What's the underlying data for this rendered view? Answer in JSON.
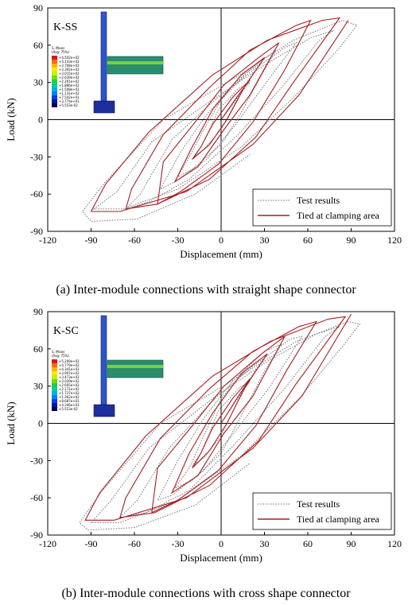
{
  "colors": {
    "test": "#7a7a7a",
    "fem": "#a81e22"
  },
  "panels": [
    {
      "caption": "(a) Inter-module connections with straight shape connector",
      "label": "K-SS",
      "colorbar_title": [
        "S, Mises",
        "(Avg: 75%)"
      ],
      "colorbar_values": [
        "+4.502e+02",
        "+4.143e+02",
        "+3.768e+02",
        "+3.392e+02",
        "+3.015e+02",
        "+2.639e+02",
        "+2.261e+02",
        "+1.886e+02",
        "+1.508e+02",
        "+1.131e+02",
        "+7.542e+01",
        "+3.774e+01",
        "+5.553e-02"
      ]
    },
    {
      "caption": "(b) Inter-module connections with cross shape connector",
      "label": "K-SC",
      "colorbar_title": [
        "S, Mises",
        "(Avg: 75%)"
      ],
      "colorbar_values": [
        "+5.209e+02",
        "+4.779e+02",
        "+4.341e+02",
        "+3.907e+02",
        "+3.473e+02",
        "+3.039e+02",
        "+2.605e+02",
        "+2.171e+02",
        "+1.737e+02",
        "+1.302e+02",
        "+8.687e+01",
        "+4.346e+01",
        "+5.553e-02"
      ]
    }
  ],
  "chart_data": [
    {
      "type": "line",
      "xlabel": "Displacement (mm)",
      "ylabel": "Load (kN)",
      "xlim": [
        -120,
        120
      ],
      "ylim": [
        -90,
        90
      ],
      "xticks": [
        -120,
        -90,
        -60,
        -30,
        0,
        30,
        60,
        90,
        120
      ],
      "yticks": [
        90,
        60,
        30,
        0,
        -30,
        -60,
        -90
      ],
      "legend_position": "bottom-right",
      "series": [
        {
          "name": "Test results",
          "style": "dotted",
          "points": [
            [
              0,
              0
            ],
            [
              8,
              12
            ],
            [
              14,
              22
            ],
            [
              20,
              30
            ],
            [
              12,
              25
            ],
            [
              -2,
              8
            ],
            [
              -8,
              -8
            ],
            [
              -14,
              -22
            ],
            [
              -19,
              -30
            ],
            [
              -12,
              -24
            ],
            [
              0,
              -8
            ],
            [
              10,
              14
            ],
            [
              20,
              34
            ],
            [
              28,
              46
            ],
            [
              18,
              38
            ],
            [
              0,
              16
            ],
            [
              -12,
              -8
            ],
            [
              -22,
              -30
            ],
            [
              -30,
              -46
            ],
            [
              -20,
              -40
            ],
            [
              0,
              -20
            ],
            [
              14,
              6
            ],
            [
              28,
              36
            ],
            [
              38,
              56
            ],
            [
              28,
              48
            ],
            [
              8,
              28
            ],
            [
              -10,
              4
            ],
            [
              -28,
              -26
            ],
            [
              -42,
              -56
            ],
            [
              -32,
              -50
            ],
            [
              -10,
              -32
            ],
            [
              10,
              -4
            ],
            [
              30,
              28
            ],
            [
              52,
              62
            ],
            [
              44,
              58
            ],
            [
              20,
              38
            ],
            [
              -6,
              14
            ],
            [
              -34,
              -16
            ],
            [
              -56,
              -60
            ],
            [
              -66,
              -72
            ],
            [
              -50,
              -66
            ],
            [
              -22,
              -48
            ],
            [
              10,
              -14
            ],
            [
              42,
              26
            ],
            [
              68,
              64
            ],
            [
              78,
              72
            ],
            [
              62,
              66
            ],
            [
              30,
              44
            ],
            [
              -6,
              16
            ],
            [
              -48,
              -18
            ],
            [
              -72,
              -58
            ],
            [
              -88,
              -72
            ],
            [
              -68,
              -72
            ],
            [
              -30,
              -56
            ],
            [
              14,
              -22
            ],
            [
              52,
              20
            ],
            [
              82,
              58
            ],
            [
              94,
              76
            ],
            [
              84,
              80
            ],
            [
              50,
              64
            ],
            [
              10,
              34
            ],
            [
              -40,
              0
            ],
            [
              -80,
              -50
            ],
            [
              -96,
              -74
            ],
            [
              -90,
              -82
            ],
            [
              -58,
              -80
            ],
            [
              -18,
              -60
            ],
            [
              20,
              -28
            ]
          ]
        },
        {
          "name": "Tied at clamping area",
          "style": "solid",
          "points": [
            [
              0,
              0
            ],
            [
              12,
              20
            ],
            [
              20,
              32
            ],
            [
              8,
              18
            ],
            [
              -6,
              -4
            ],
            [
              -14,
              -22
            ],
            [
              -20,
              -32
            ],
            [
              -8,
              -20
            ],
            [
              4,
              0
            ],
            [
              16,
              26
            ],
            [
              30,
              50
            ],
            [
              14,
              36
            ],
            [
              -6,
              8
            ],
            [
              -20,
              -22
            ],
            [
              -32,
              -50
            ],
            [
              -16,
              -38
            ],
            [
              2,
              -8
            ],
            [
              20,
              20
            ],
            [
              40,
              62
            ],
            [
              26,
              50
            ],
            [
              2,
              28
            ],
            [
              -18,
              -2
            ],
            [
              -40,
              -34
            ],
            [
              -44,
              -68
            ],
            [
              -28,
              -58
            ],
            [
              -2,
              -36
            ],
            [
              22,
              -2
            ],
            [
              44,
              40
            ],
            [
              62,
              80
            ],
            [
              52,
              76
            ],
            [
              20,
              56
            ],
            [
              -8,
              26
            ],
            [
              -40,
              -12
            ],
            [
              -62,
              -56
            ],
            [
              -66,
              -72
            ],
            [
              -44,
              -68
            ],
            [
              -8,
              -48
            ],
            [
              24,
              -14
            ],
            [
              50,
              30
            ],
            [
              82,
              82
            ],
            [
              70,
              80
            ],
            [
              32,
              64
            ],
            [
              -6,
              36
            ],
            [
              -50,
              -10
            ],
            [
              -80,
              -52
            ],
            [
              -90,
              -74
            ],
            [
              -70,
              -74
            ],
            [
              -24,
              -58
            ],
            [
              22,
              -20
            ],
            [
              54,
              20
            ],
            [
              88,
              80
            ]
          ]
        }
      ]
    },
    {
      "type": "line",
      "xlabel": "Displacement (mm)",
      "ylabel": "Load (kN)",
      "xlim": [
        -120,
        120
      ],
      "ylim": [
        -90,
        90
      ],
      "xticks": [
        -120,
        -90,
        -60,
        -30,
        0,
        30,
        60,
        90,
        120
      ],
      "yticks": [
        90,
        60,
        30,
        0,
        -30,
        -60,
        -90
      ],
      "legend_position": "bottom-right",
      "series": [
        {
          "name": "Test results",
          "style": "dotted",
          "points": [
            [
              0,
              0
            ],
            [
              8,
              14
            ],
            [
              14,
              24
            ],
            [
              20,
              34
            ],
            [
              12,
              28
            ],
            [
              -2,
              10
            ],
            [
              -8,
              -8
            ],
            [
              -14,
              -24
            ],
            [
              -20,
              -34
            ],
            [
              -12,
              -28
            ],
            [
              0,
              -10
            ],
            [
              10,
              14
            ],
            [
              22,
              40
            ],
            [
              30,
              52
            ],
            [
              18,
              44
            ],
            [
              0,
              20
            ],
            [
              -12,
              -10
            ],
            [
              -22,
              -36
            ],
            [
              -32,
              -52
            ],
            [
              -20,
              -46
            ],
            [
              0,
              -24
            ],
            [
              14,
              6
            ],
            [
              30,
              42
            ],
            [
              42,
              64
            ],
            [
              30,
              58
            ],
            [
              8,
              34
            ],
            [
              -12,
              4
            ],
            [
              -30,
              -30
            ],
            [
              -44,
              -62
            ],
            [
              -34,
              -58
            ],
            [
              -12,
              -38
            ],
            [
              10,
              -6
            ],
            [
              34,
              30
            ],
            [
              56,
              70
            ],
            [
              48,
              68
            ],
            [
              22,
              46
            ],
            [
              -6,
              18
            ],
            [
              -36,
              -20
            ],
            [
              -58,
              -62
            ],
            [
              -70,
              -76
            ],
            [
              -52,
              -72
            ],
            [
              -22,
              -54
            ],
            [
              10,
              -16
            ],
            [
              44,
              28
            ],
            [
              72,
              70
            ],
            [
              82,
              78
            ],
            [
              66,
              72
            ],
            [
              32,
              50
            ],
            [
              -6,
              20
            ],
            [
              -50,
              -20
            ],
            [
              -76,
              -62
            ],
            [
              -90,
              -80
            ],
            [
              -70,
              -80
            ],
            [
              -30,
              -62
            ],
            [
              14,
              -26
            ],
            [
              54,
              20
            ],
            [
              84,
              62
            ],
            [
              96,
              80
            ],
            [
              88,
              82
            ],
            [
              52,
              66
            ],
            [
              10,
              36
            ],
            [
              -42,
              0
            ],
            [
              -82,
              -54
            ],
            [
              -98,
              -80
            ],
            [
              -92,
              -86
            ],
            [
              -60,
              -84
            ],
            [
              -18,
              -66
            ],
            [
              20,
              -32
            ]
          ]
        },
        {
          "name": "Tied at clamping area",
          "style": "solid",
          "points": [
            [
              0,
              0
            ],
            [
              12,
              22
            ],
            [
              20,
              36
            ],
            [
              8,
              20
            ],
            [
              -6,
              -4
            ],
            [
              -14,
              -24
            ],
            [
              -20,
              -36
            ],
            [
              -8,
              -22
            ],
            [
              4,
              0
            ],
            [
              16,
              28
            ],
            [
              32,
              56
            ],
            [
              14,
              40
            ],
            [
              -6,
              8
            ],
            [
              -22,
              -24
            ],
            [
              -34,
              -56
            ],
            [
              -16,
              -42
            ],
            [
              2,
              -8
            ],
            [
              22,
              22
            ],
            [
              44,
              70
            ],
            [
              28,
              56
            ],
            [
              2,
              30
            ],
            [
              -20,
              -2
            ],
            [
              -44,
              -36
            ],
            [
              -48,
              -72
            ],
            [
              -30,
              -62
            ],
            [
              -2,
              -38
            ],
            [
              24,
              -2
            ],
            [
              46,
              44
            ],
            [
              66,
              82
            ],
            [
              54,
              78
            ],
            [
              22,
              58
            ],
            [
              -8,
              28
            ],
            [
              -42,
              -12
            ],
            [
              -66,
              -60
            ],
            [
              -70,
              -76
            ],
            [
              -46,
              -72
            ],
            [
              -8,
              -50
            ],
            [
              26,
              -14
            ],
            [
              52,
              32
            ],
            [
              86,
              86
            ],
            [
              74,
              84
            ],
            [
              34,
              66
            ],
            [
              -6,
              38
            ],
            [
              -52,
              -10
            ],
            [
              -84,
              -56
            ],
            [
              -94,
              -78
            ],
            [
              -74,
              -78
            ],
            [
              -24,
              -60
            ],
            [
              22,
              -20
            ],
            [
              56,
              22
            ],
            [
              90,
              88
            ]
          ]
        }
      ]
    }
  ]
}
